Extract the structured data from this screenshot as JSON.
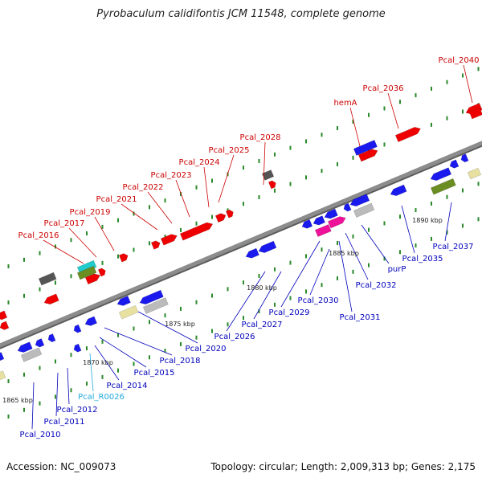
{
  "title": "Pyrobaculum calidifontis JCM 11548, complete genome",
  "footer": {
    "accession": "Accession: NC_009073",
    "summary": "Topology: circular; Length: 2,009,313 bp; Genes: 2,175"
  },
  "colors": {
    "backbone": "#8c8c8c",
    "top_label": "#cc0000",
    "bottom_label": "#0000bb",
    "rna_label": "#22aadd",
    "red_gene": "#ee0000",
    "blue_gene": "#1a1aee",
    "gray_gene": "#bbbbbb",
    "olive_gene": "#6b8e23",
    "pink_gene": "#ee1199",
    "cyan_gene": "#22cccc",
    "khaki_gene": "#e8e0a0",
    "dark_gene": "#555555",
    "tick": "#2a8a2a"
  },
  "kbp_markers": [
    "1865 kbp",
    "1870 kbp",
    "1875 kbp",
    "1880 kbp",
    "1885 kbp",
    "1890 kbp"
  ],
  "top_labels": [
    "Pcal_2016",
    "Pcal_2017",
    "Pcal_2019",
    "Pcal_2021",
    "Pcal_2022",
    "Pcal_2023",
    "Pcal_2024",
    "Pcal_2025",
    "Pcal_2028",
    "hemA",
    "Pcal_2036",
    "Pcal_2040"
  ],
  "bottom_labels": [
    "Pcal_2010",
    "Pcal_2011",
    "Pcal_2012",
    "Pcal_R0026",
    "Pcal_2014",
    "Pcal_2015",
    "Pcal_2018",
    "Pcal_2020",
    "Pcal_2026",
    "Pcal_2027",
    "Pcal_2029",
    "Pcal_2030",
    "Pcal_2031",
    "Pcal_2032",
    "purP",
    "Pcal_2035",
    "Pcal_2037"
  ]
}
